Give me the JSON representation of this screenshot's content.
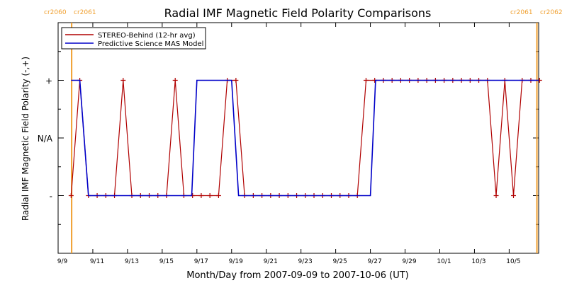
{
  "chart_data": {
    "type": "line",
    "title": "Radial IMF Magnetic Field Polarity Comparisons",
    "xlabel": "Month/Day from 2007-09-09 to 2007-10-06 (UT)",
    "ylabel": "Radial IMF Magnetic Field Polarity (-,+)",
    "x_start": "2007-09-09",
    "x_end": "2007-10-06",
    "xlim": [
      0,
      27.7
    ],
    "ylim": [
      -2,
      2
    ],
    "grid": false,
    "legend_position": "top-left",
    "x_ticks": [
      {
        "x": 0,
        "label": "9/9"
      },
      {
        "x": 2,
        "label": "9/11"
      },
      {
        "x": 4,
        "label": "9/13"
      },
      {
        "x": 6,
        "label": "9/15"
      },
      {
        "x": 8,
        "label": "9/17"
      },
      {
        "x": 10,
        "label": "9/19"
      },
      {
        "x": 12,
        "label": "9/21"
      },
      {
        "x": 14,
        "label": "9/23"
      },
      {
        "x": 16,
        "label": "9/25"
      },
      {
        "x": 18,
        "label": "9/27"
      },
      {
        "x": 20,
        "label": "9/29"
      },
      {
        "x": 22,
        "label": "10/1"
      },
      {
        "x": 24,
        "label": "10/3"
      },
      {
        "x": 26,
        "label": "10/5"
      }
    ],
    "y_ticks": [
      {
        "y": 1,
        "label": "+"
      },
      {
        "y": 0,
        "label": "N/A"
      },
      {
        "y": -1,
        "label": "-"
      }
    ],
    "carrington_markers": [
      {
        "x": 0.78,
        "label_left": "cr2060",
        "label_right": "cr2061"
      },
      {
        "x": 27.6,
        "label_left": "cr2061",
        "label_right": "cr2062"
      }
    ],
    "marker_color": "#f0a030",
    "series": [
      {
        "name": "STEREO-Behind (12-hr avg)",
        "color": "#b00000",
        "marker": "plus",
        "points": [
          [
            0.75,
            -1
          ],
          [
            1.25,
            1
          ],
          [
            1.75,
            -1
          ],
          [
            2.25,
            -1
          ],
          [
            2.75,
            -1
          ],
          [
            3.25,
            -1
          ],
          [
            3.75,
            1
          ],
          [
            4.25,
            -1
          ],
          [
            4.75,
            -1
          ],
          [
            5.25,
            -1
          ],
          [
            5.75,
            -1
          ],
          [
            6.25,
            -1
          ],
          [
            6.75,
            1
          ],
          [
            7.25,
            -1
          ],
          [
            7.75,
            -1
          ],
          [
            8.25,
            -1
          ],
          [
            8.75,
            -1
          ],
          [
            9.25,
            -1
          ],
          [
            9.75,
            1
          ],
          [
            10.25,
            1
          ],
          [
            10.75,
            -1
          ],
          [
            11.25,
            -1
          ],
          [
            11.75,
            -1
          ],
          [
            12.25,
            -1
          ],
          [
            12.75,
            -1
          ],
          [
            13.25,
            -1
          ],
          [
            13.75,
            -1
          ],
          [
            14.25,
            -1
          ],
          [
            14.75,
            -1
          ],
          [
            15.25,
            -1
          ],
          [
            15.75,
            -1
          ],
          [
            16.25,
            -1
          ],
          [
            16.75,
            -1
          ],
          [
            17.25,
            -1
          ],
          [
            17.75,
            1
          ],
          [
            18.25,
            1
          ],
          [
            18.75,
            1
          ],
          [
            19.25,
            1
          ],
          [
            19.75,
            1
          ],
          [
            20.25,
            1
          ],
          [
            20.75,
            1
          ],
          [
            21.25,
            1
          ],
          [
            21.75,
            1
          ],
          [
            22.25,
            1
          ],
          [
            22.75,
            1
          ],
          [
            23.25,
            1
          ],
          [
            23.75,
            1
          ],
          [
            24.25,
            1
          ],
          [
            24.75,
            1
          ],
          [
            25.25,
            -1
          ],
          [
            25.75,
            1
          ],
          [
            26.25,
            -1
          ],
          [
            26.75,
            1
          ],
          [
            27.25,
            1
          ],
          [
            27.75,
            1
          ]
        ]
      },
      {
        "name": "Predictive Science MAS Model",
        "color": "#0000c8",
        "marker": "none",
        "points": [
          [
            0.75,
            1
          ],
          [
            1.25,
            1
          ],
          [
            1.75,
            -1
          ],
          [
            7.7,
            -1
          ],
          [
            8.0,
            1
          ],
          [
            10.0,
            1
          ],
          [
            10.4,
            -1
          ],
          [
            18.0,
            -1
          ],
          [
            18.3,
            1
          ],
          [
            27.7,
            1
          ]
        ]
      }
    ]
  }
}
